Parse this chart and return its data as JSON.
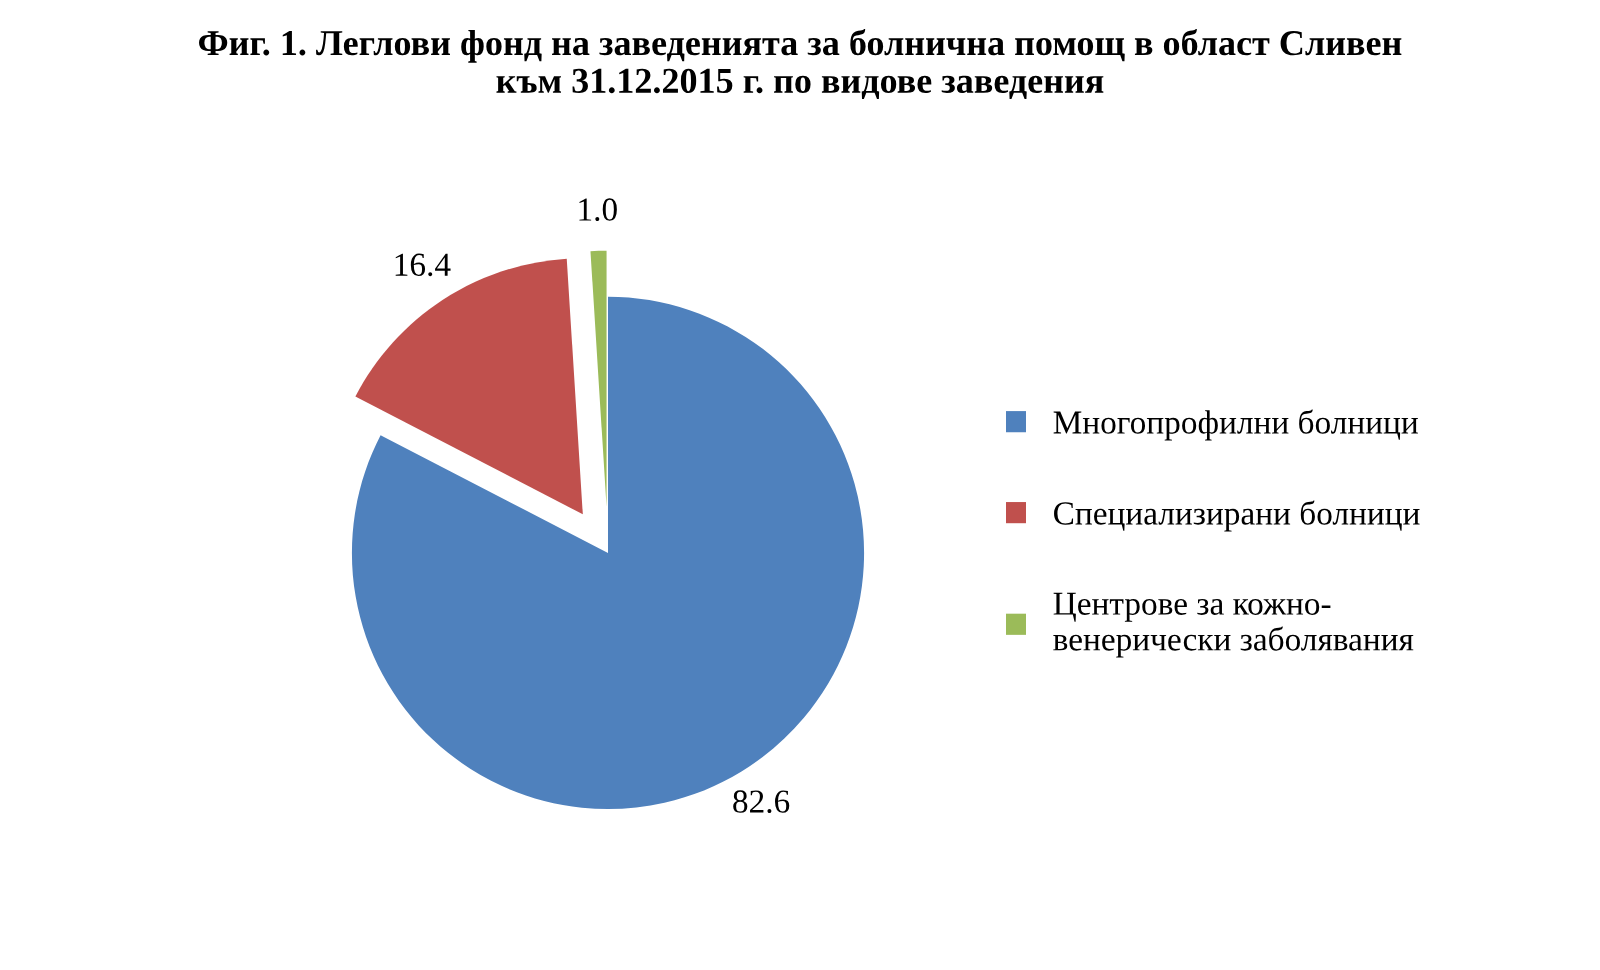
{
  "chart_data": {
    "type": "pie",
    "title": "Фиг. 1. Леглови фонд на заведенията за болнична помощ в област Сливен\nкъм 31.12.2015 г. по видове заведения",
    "categories": [
      "Многопрофилни болници",
      "Специализирани болници",
      "Центрове за кожно-\nвенерически заболявания"
    ],
    "values": [
      82.6,
      16.4,
      1.0
    ],
    "colors": [
      "#4f81bd",
      "#c0504d",
      "#9bbb59"
    ],
    "value_labels": [
      "82.6",
      "16.4",
      "1.0"
    ],
    "legend": "right"
  }
}
